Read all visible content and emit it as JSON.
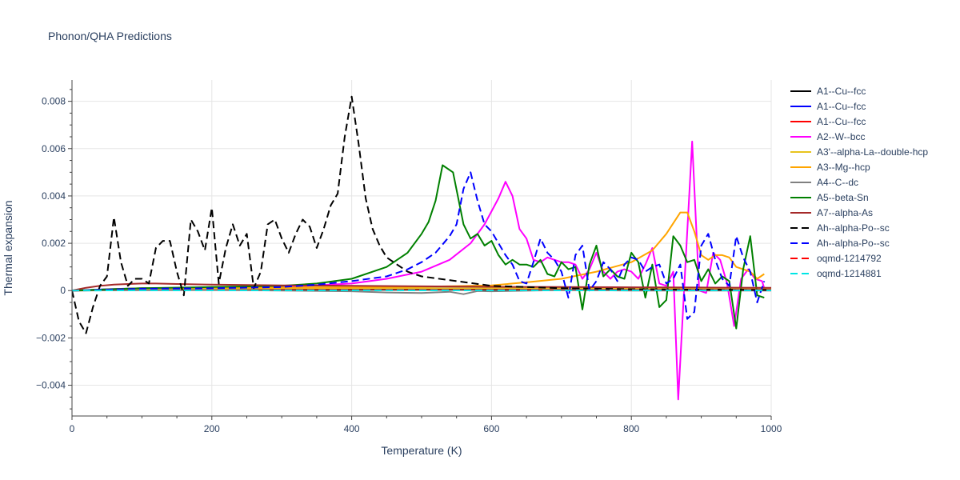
{
  "chart_data": {
    "type": "line",
    "title": "Phonon/QHA Predictions",
    "xlabel": "Temperature (K)",
    "ylabel": "Thermal expansion",
    "xlim": [
      0,
      1000
    ],
    "ylim": [
      -0.0053,
      0.0089
    ],
    "xticks": [
      0,
      200,
      400,
      600,
      800,
      1000
    ],
    "xtick_labels": [
      "0",
      "200",
      "400",
      "600",
      "800",
      "1000"
    ],
    "yticks": [
      -0.004,
      -0.002,
      0,
      0.002,
      0.004,
      0.006,
      0.008
    ],
    "ytick_labels": [
      "−0.004",
      "−0.002",
      "0",
      "0.002",
      "0.004",
      "0.006",
      "0.008"
    ],
    "grid": true,
    "legend_position": "right",
    "series": [
      {
        "name": "A1--Cu--fcc",
        "color": "#000000",
        "dash": "solid",
        "x": [
          0,
          50,
          100,
          200,
          300,
          400,
          500,
          600,
          700,
          800,
          900,
          1000
        ],
        "y": [
          0,
          3e-05,
          5e-05,
          5e-05,
          5e-05,
          5e-05,
          5e-05,
          5e-05,
          5e-05,
          5e-05,
          5e-05,
          5e-05
        ]
      },
      {
        "name": "A1--Cu--fcc",
        "color": "#0000ff",
        "dash": "solid",
        "x": [
          0,
          50,
          100,
          200,
          300,
          400,
          500,
          600,
          700,
          800,
          900,
          1000
        ],
        "y": [
          0,
          6e-05,
          0.0001,
          0.0001,
          0.0001,
          0.0001,
          0.0001,
          0.0001,
          0.0001,
          0.0001,
          0.0001,
          0.0001
        ]
      },
      {
        "name": "A1--Cu--fcc",
        "color": "#ff0000",
        "dash": "solid",
        "x": [
          0,
          50,
          100,
          200,
          300,
          400,
          500,
          600,
          700,
          800,
          900,
          1000
        ],
        "y": [
          0,
          4e-05,
          7e-05,
          8e-05,
          8e-05,
          8e-05,
          8e-05,
          8e-05,
          8e-05,
          8e-05,
          8e-05,
          8e-05
        ]
      },
      {
        "name": "A2--W--bcc",
        "color": "#ff00ff",
        "dash": "solid",
        "x": [
          0,
          100,
          200,
          300,
          400,
          450,
          500,
          540,
          570,
          590,
          610,
          620,
          630,
          640,
          650,
          660,
          670,
          680,
          690,
          700,
          710,
          720,
          730,
          740,
          750,
          760,
          770,
          780,
          790,
          800,
          810,
          820,
          830,
          840,
          850,
          860,
          867,
          877,
          887,
          897,
          907,
          917,
          927,
          937,
          947,
          957,
          967,
          977,
          987,
          990
        ],
        "y": [
          0,
          5e-05,
          0.0001,
          0.00015,
          0.0003,
          0.0005,
          0.0008,
          0.0013,
          0.002,
          0.0028,
          0.0039,
          0.0046,
          0.004,
          0.0026,
          0.0022,
          0.0013,
          0.0012,
          0.0014,
          0.0013,
          0.0012,
          0.0012,
          0.0011,
          0.0005,
          0.0009,
          0.0016,
          0.0008,
          0.0005,
          0.0008,
          0.0009,
          0.0008,
          0.0005,
          0.0011,
          0.0018,
          0.0003,
          0.0002,
          0.0008,
          -0.0046,
          0.0009,
          0.0063,
          0.0,
          -0.0001,
          0.0016,
          0.0013,
          0.0003,
          -0.0015,
          0.0005,
          0.0009,
          0.0005,
          0.0004,
          0.0001
        ]
      },
      {
        "name": "A3'--alpha-La--double-hcp",
        "color": "#e8c31e",
        "dash": "solid",
        "x": [
          0,
          100,
          200,
          300,
          400,
          500,
          600,
          700,
          800,
          900,
          1000
        ],
        "y": [
          0,
          5e-05,
          8e-05,
          0.0001,
          0.0001,
          0.0001,
          0.0001,
          0.0001,
          0.0001,
          0.0001,
          0.0001
        ]
      },
      {
        "name": "A3--Mg--hcp",
        "color": "#ffa500",
        "dash": "solid",
        "x": [
          0,
          100,
          200,
          300,
          400,
          500,
          600,
          650,
          700,
          750,
          800,
          830,
          850,
          870,
          880,
          890,
          900,
          910,
          920,
          930,
          940,
          950,
          960,
          970,
          980,
          990
        ],
        "y": [
          0,
          0.0001,
          0.00012,
          0.00013,
          0.00014,
          0.00016,
          0.00022,
          0.00035,
          0.0005,
          0.0008,
          0.0012,
          0.0017,
          0.0024,
          0.0033,
          0.0033,
          0.0025,
          0.0015,
          0.0013,
          0.0015,
          0.0015,
          0.0014,
          0.001,
          0.0009,
          0.0008,
          0.0005,
          0.0007
        ]
      },
      {
        "name": "A4--C--dc",
        "color": "#808080",
        "dash": "solid",
        "x": [
          0,
          100,
          200,
          300,
          400,
          450,
          500,
          540,
          560,
          580,
          600,
          700,
          800,
          900,
          1000
        ],
        "y": [
          0,
          2e-05,
          3e-05,
          0.0,
          -3e-05,
          -8e-05,
          -0.0001,
          -5e-05,
          -0.00015,
          -2e-05,
          -3e-05,
          2e-05,
          0.0,
          0.0,
          0.0
        ]
      },
      {
        "name": "A5--beta-Sn",
        "color": "#008000",
        "dash": "solid",
        "x": [
          0,
          100,
          200,
          300,
          350,
          400,
          450,
          480,
          500,
          510,
          520,
          530,
          545,
          560,
          570,
          580,
          590,
          600,
          610,
          620,
          630,
          640,
          650,
          660,
          670,
          680,
          690,
          700,
          710,
          720,
          730,
          740,
          750,
          760,
          770,
          780,
          790,
          800,
          810,
          820,
          830,
          840,
          850,
          860,
          870,
          880,
          890,
          900,
          910,
          920,
          930,
          940,
          950,
          960,
          970,
          980,
          990
        ],
        "y": [
          0,
          0.0001,
          0.00015,
          0.0002,
          0.0003,
          0.0005,
          0.001,
          0.0016,
          0.0024,
          0.0029,
          0.0038,
          0.0053,
          0.005,
          0.0028,
          0.0022,
          0.0024,
          0.0019,
          0.0021,
          0.0015,
          0.0011,
          0.0013,
          0.0011,
          0.0011,
          0.001,
          0.0013,
          0.0007,
          0.0006,
          0.0012,
          0.0009,
          0.001,
          -0.0008,
          0.0011,
          0.0019,
          0.0006,
          0.0009,
          0.0006,
          0.0005,
          0.0016,
          0.0012,
          -0.0003,
          0.0011,
          -0.0007,
          -0.0004,
          0.0023,
          0.0019,
          0.0012,
          0.0013,
          0.0004,
          0.0009,
          0.0003,
          0.0006,
          0.0004,
          -0.0016,
          0.0009,
          0.0023,
          -0.0002,
          -0.0003
        ]
      },
      {
        "name": "A7--alpha-As",
        "color": "#a52a2a",
        "dash": "solid",
        "x": [
          0,
          20,
          40,
          60,
          80,
          100,
          120,
          150,
          200,
          300,
          400,
          500,
          600,
          700,
          800,
          900,
          1000
        ],
        "y": [
          0,
          0.00012,
          0.0002,
          0.00025,
          0.00028,
          0.0003,
          0.0003,
          0.00028,
          0.00025,
          0.00022,
          0.0002,
          0.00018,
          0.00016,
          0.00015,
          0.00014,
          0.00013,
          0.00012
        ]
      },
      {
        "name": "Ah--alpha-Po--sc",
        "color": "#000000",
        "dash": "dash",
        "x": [
          0,
          10,
          20,
          30,
          40,
          50,
          60,
          70,
          80,
          90,
          100,
          110,
          120,
          130,
          140,
          150,
          160,
          170,
          180,
          190,
          200,
          210,
          220,
          230,
          240,
          250,
          260,
          270,
          280,
          290,
          300,
          310,
          320,
          330,
          340,
          350,
          360,
          370,
          380,
          390,
          400,
          410,
          420,
          430,
          440,
          450,
          460,
          470,
          480,
          500,
          550,
          600,
          650,
          700,
          750,
          800,
          900,
          1000
        ],
        "y": [
          0,
          -0.0013,
          -0.0018,
          -0.0007,
          0.0002,
          0.0006,
          0.0031,
          0.0012,
          0.0002,
          0.0005,
          0.0005,
          0.0003,
          0.0018,
          0.0021,
          0.0021,
          0.0008,
          -0.0002,
          0.003,
          0.0025,
          0.0017,
          0.0035,
          0.0003,
          0.0018,
          0.0028,
          0.0019,
          0.0024,
          0.0001,
          0.0008,
          0.0028,
          0.003,
          0.0022,
          0.0016,
          0.0024,
          0.003,
          0.0027,
          0.0018,
          0.0026,
          0.0036,
          0.0041,
          0.0065,
          0.0082,
          0.0062,
          0.0039,
          0.0026,
          0.0019,
          0.0014,
          0.0012,
          0.001,
          0.0008,
          0.0006,
          0.0004,
          0.0002,
          0.00015,
          0.0001,
          8e-05,
          6e-05,
          4e-05,
          3e-05
        ]
      },
      {
        "name": "Ah--alpha-Po--sc",
        "color": "#0000ff",
        "dash": "dash",
        "x": [
          0,
          100,
          200,
          300,
          350,
          400,
          450,
          480,
          500,
          520,
          540,
          550,
          560,
          570,
          580,
          590,
          600,
          620,
          630,
          640,
          650,
          660,
          670,
          680,
          690,
          700,
          710,
          720,
          730,
          740,
          750,
          760,
          770,
          780,
          790,
          800,
          810,
          820,
          830,
          840,
          850,
          860,
          870,
          880,
          890,
          900,
          910,
          920,
          930,
          940,
          950,
          960,
          970,
          980,
          990
        ],
        "y": [
          0,
          8e-05,
          0.0001,
          0.00015,
          0.00025,
          0.0004,
          0.0006,
          0.0009,
          0.0012,
          0.0016,
          0.0023,
          0.0028,
          0.0043,
          0.005,
          0.0038,
          0.0028,
          0.0025,
          0.0015,
          0.0011,
          0.0004,
          0.0003,
          0.0012,
          0.0022,
          0.0016,
          0.0013,
          0.0008,
          -0.0003,
          0.0015,
          0.0019,
          0.0,
          0.0004,
          0.0012,
          0.0009,
          0.0004,
          0.0011,
          0.0014,
          0.0013,
          0.0008,
          0.001,
          0.0011,
          0.0003,
          0.0005,
          0.0011,
          -0.0012,
          -0.0009,
          0.0019,
          0.0024,
          0.0013,
          0.0005,
          0.0002,
          0.0023,
          0.0014,
          0.0008,
          -0.0005,
          0.0004
        ]
      },
      {
        "name": "oqmd-1214792",
        "color": "#ff0000",
        "dash": "dash",
        "x": [
          0,
          100,
          200,
          300,
          400,
          500,
          600,
          700,
          800,
          900,
          1000
        ],
        "y": [
          0,
          2e-05,
          3e-05,
          3e-05,
          3e-05,
          3e-05,
          3e-05,
          3e-05,
          3e-05,
          3e-05,
          3e-05
        ]
      },
      {
        "name": "oqmd-1214881",
        "color": "#00e5e5",
        "dash": "dash",
        "x": [
          0,
          100,
          200,
          300,
          400,
          500,
          600,
          700,
          800,
          900,
          1000
        ],
        "y": [
          0,
          1e-05,
          1e-05,
          1e-05,
          1e-05,
          1e-05,
          1e-05,
          1e-05,
          1e-05,
          1e-05,
          1e-05
        ]
      }
    ]
  }
}
